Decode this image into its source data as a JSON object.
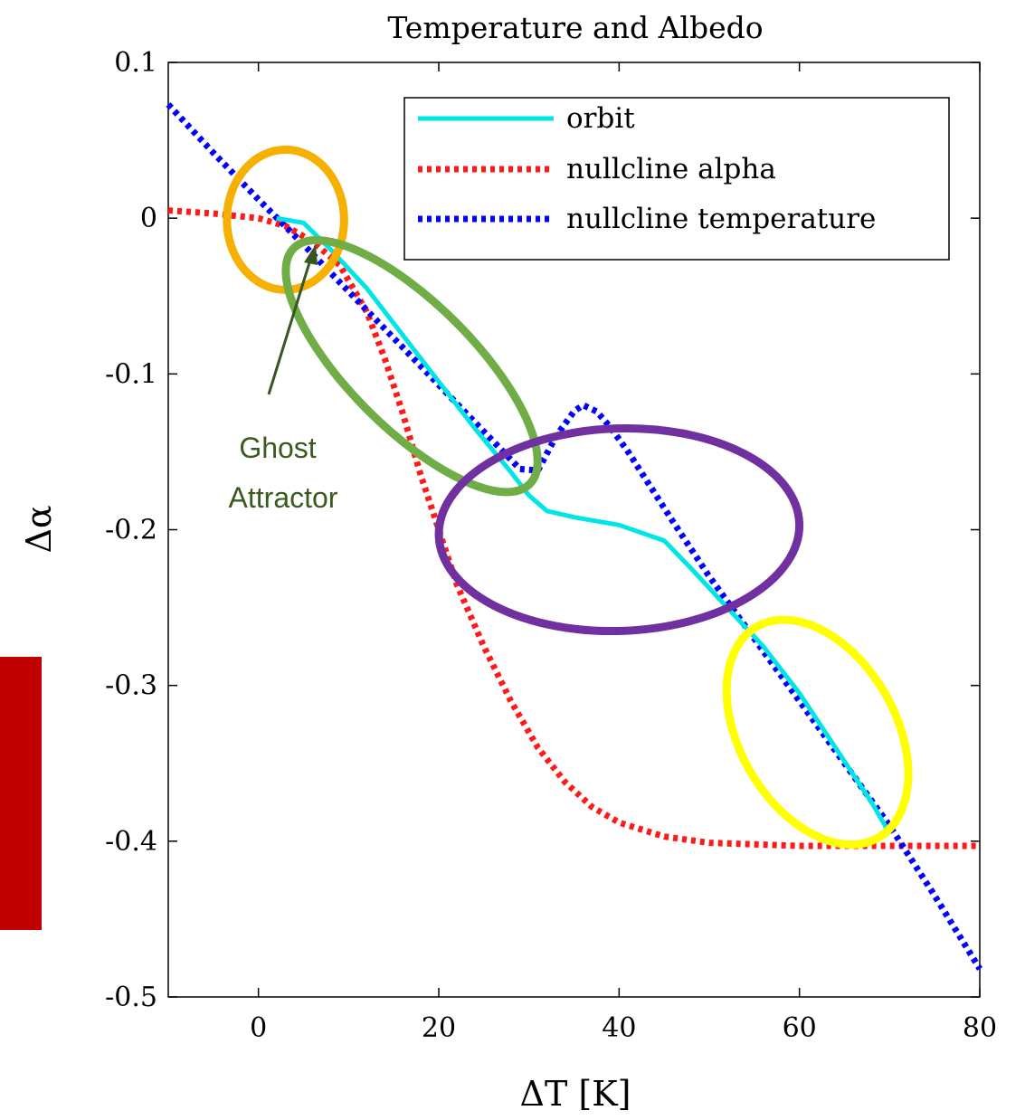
{
  "chart_data": {
    "type": "line",
    "title": "Temperature and Albedo",
    "xlabel": "ΔT [K]",
    "ylabel": "Δα",
    "xlim": [
      -10,
      80
    ],
    "ylim": [
      -0.5,
      0.1
    ],
    "xticks": [
      0,
      20,
      40,
      60,
      80
    ],
    "xtick_labels": [
      "0",
      "20",
      "40",
      "60",
      "80"
    ],
    "yticks": [
      0.1,
      0,
      -0.1,
      -0.2,
      -0.3,
      -0.4,
      -0.5
    ],
    "ytick_labels": [
      "0.1",
      "0",
      "-0.1",
      "-0.2",
      "-0.3",
      "-0.4",
      "-0.5"
    ],
    "grid": false,
    "legend_position": "top-right",
    "series": [
      {
        "name": "orbit",
        "color": "#00e5e5",
        "style": "solid",
        "x": [
          2,
          5,
          8,
          12,
          16,
          20,
          24,
          28,
          30,
          32,
          35,
          40,
          45,
          48,
          52,
          56,
          60,
          64,
          68,
          70
        ],
        "y": [
          0.0,
          -0.003,
          -0.02,
          -0.045,
          -0.075,
          -0.105,
          -0.135,
          -0.163,
          -0.178,
          -0.188,
          -0.192,
          -0.197,
          -0.207,
          -0.225,
          -0.25,
          -0.275,
          -0.305,
          -0.34,
          -0.375,
          -0.395
        ]
      },
      {
        "name": "nullcline alpha",
        "color": "#ff1a1a",
        "style": "dotted",
        "x": [
          -10,
          -5,
          0,
          3,
          6,
          9,
          12,
          14,
          16,
          18,
          20,
          22,
          25,
          28,
          31,
          34,
          37,
          40,
          45,
          50,
          60,
          70,
          80
        ],
        "y": [
          0.005,
          0.003,
          0.0,
          -0.005,
          -0.015,
          -0.03,
          -0.06,
          -0.09,
          -0.125,
          -0.165,
          -0.2,
          -0.235,
          -0.275,
          -0.31,
          -0.34,
          -0.362,
          -0.378,
          -0.388,
          -0.397,
          -0.401,
          -0.403,
          -0.403,
          -0.403
        ]
      },
      {
        "name": "nullcline temperature",
        "color": "#0000ff",
        "style": "dotted",
        "x": [
          -10,
          -5,
          0,
          5,
          10,
          15,
          20,
          25,
          29,
          31,
          33,
          35,
          36,
          37.5,
          39,
          41,
          43,
          46,
          50,
          55,
          60,
          65,
          70,
          75,
          80
        ],
        "y": [
          0.073,
          0.042,
          0.012,
          -0.017,
          -0.047,
          -0.077,
          -0.107,
          -0.137,
          -0.161,
          -0.162,
          -0.14,
          -0.124,
          -0.12,
          -0.124,
          -0.134,
          -0.15,
          -0.168,
          -0.195,
          -0.23,
          -0.27,
          -0.31,
          -0.35,
          -0.39,
          -0.435,
          -0.482
        ]
      }
    ],
    "annotations": {
      "ghost_label_line1": "Ghost",
      "ghost_label_line2": "Attractor",
      "ellipses": [
        {
          "name": "orange-ellipse",
          "color": "#f5b000",
          "cx": 3,
          "cy": -0.001,
          "rx_data": 6.5,
          "ry_data": 0.045,
          "angle": 0
        },
        {
          "name": "green-ellipse",
          "color": "#70ad47",
          "cx": 17,
          "cy": -0.095,
          "rx_data": 18.5,
          "ry_data": 0.04,
          "angle": 45
        },
        {
          "name": "purple-ellipse",
          "color": "#7030a0",
          "cx": 40,
          "cy": -0.2,
          "rx_data": 20,
          "ry_data": 0.065,
          "angle": -2
        },
        {
          "name": "yellow-ellipse",
          "color": "#ffff00",
          "cx": 62,
          "cy": -0.33,
          "rx_data": 13.5,
          "ry_data": 0.05,
          "angle": 60
        }
      ]
    }
  }
}
